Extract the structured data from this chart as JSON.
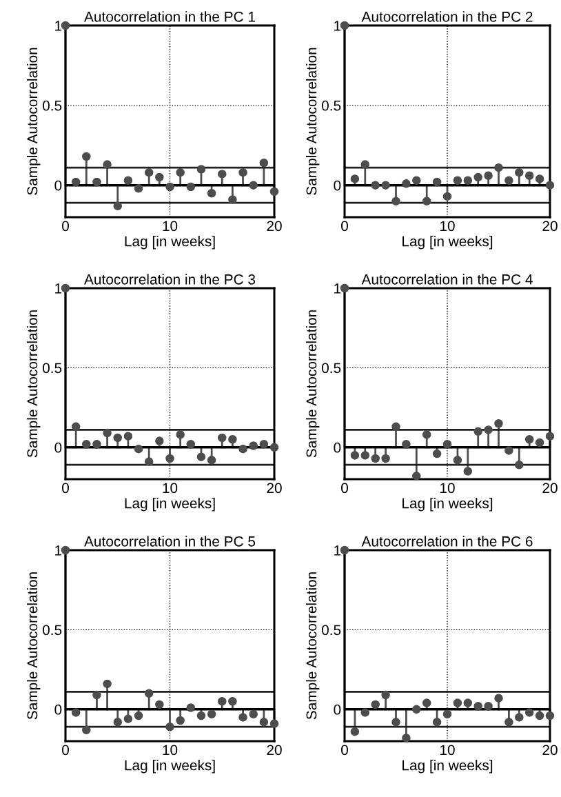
{
  "chart_data": [
    {
      "type": "lollipop",
      "title": "Autocorrelation in the PC 1",
      "xlabel": "Lag [in weeks]",
      "ylabel": "Sample Autocorrelation",
      "x": [
        0,
        1,
        2,
        3,
        4,
        5,
        6,
        7,
        8,
        9,
        10,
        11,
        12,
        13,
        14,
        15,
        16,
        17,
        18,
        19,
        20
      ],
      "series": [
        {
          "color": "#4d4d4d",
          "values": [
            1,
            0.02,
            0.18,
            0.02,
            0.13,
            -0.13,
            0.03,
            -0.02,
            0.08,
            0.05,
            -0.01,
            0.08,
            -0.01,
            0.1,
            -0.05,
            0.07,
            -0.09,
            0.08,
            0.0,
            0.14,
            -0.04
          ]
        }
      ],
      "xlim": [
        0,
        20
      ],
      "xticks": [
        0,
        10,
        20
      ],
      "ylim": [
        -0.2,
        1
      ],
      "yticks": [
        0,
        0.5,
        1
      ],
      "grid": true,
      "marker": "circle",
      "ref_lines": [
        {
          "axis": "y",
          "value": 0.11,
          "color": "#222222"
        },
        {
          "axis": "y",
          "value": -0.11,
          "color": "#222222"
        }
      ]
    },
    {
      "type": "lollipop",
      "title": "Autocorrelation in the PC 2",
      "xlabel": "Lag [in weeks]",
      "ylabel": "Sample Autocorrelation",
      "x": [
        0,
        1,
        2,
        3,
        4,
        5,
        6,
        7,
        8,
        9,
        10,
        11,
        12,
        13,
        14,
        15,
        16,
        17,
        18,
        19,
        20
      ],
      "series": [
        {
          "color": "#4d4d4d",
          "values": [
            1,
            0.04,
            0.13,
            0.0,
            0.0,
            -0.1,
            0.01,
            0.03,
            -0.1,
            0.02,
            -0.07,
            0.03,
            0.03,
            0.05,
            0.06,
            0.11,
            0.03,
            0.08,
            0.06,
            0.04,
            0.0
          ]
        }
      ],
      "xlim": [
        0,
        20
      ],
      "xticks": [
        0,
        10,
        20
      ],
      "ylim": [
        -0.2,
        1
      ],
      "yticks": [
        0,
        0.5,
        1
      ],
      "grid": true,
      "marker": "circle",
      "ref_lines": [
        {
          "axis": "y",
          "value": 0.11,
          "color": "#222222"
        },
        {
          "axis": "y",
          "value": -0.11,
          "color": "#222222"
        }
      ]
    },
    {
      "type": "lollipop",
      "title": "Autocorrelation in the PC 3",
      "xlabel": "Lag [in weeks]",
      "ylabel": "Sample Autocorrelation",
      "x": [
        0,
        1,
        2,
        3,
        4,
        5,
        6,
        7,
        8,
        9,
        10,
        11,
        12,
        13,
        14,
        15,
        16,
        17,
        18,
        19,
        20
      ],
      "series": [
        {
          "color": "#4d4d4d",
          "values": [
            1,
            0.13,
            0.02,
            0.02,
            0.09,
            0.06,
            0.07,
            -0.01,
            -0.09,
            0.04,
            -0.07,
            0.08,
            0.02,
            -0.06,
            -0.08,
            0.06,
            0.05,
            -0.01,
            0.01,
            0.02,
            0.0
          ]
        }
      ],
      "xlim": [
        0,
        20
      ],
      "xticks": [
        0,
        10,
        20
      ],
      "ylim": [
        -0.2,
        1
      ],
      "yticks": [
        0,
        0.5,
        1
      ],
      "grid": true,
      "marker": "circle",
      "ref_lines": [
        {
          "axis": "y",
          "value": 0.11,
          "color": "#222222"
        },
        {
          "axis": "y",
          "value": -0.11,
          "color": "#222222"
        }
      ]
    },
    {
      "type": "lollipop",
      "title": "Autocorrelation in the PC 4",
      "xlabel": "Lag [in weeks]",
      "ylabel": "Sample Autocorrelation",
      "x": [
        0,
        1,
        2,
        3,
        4,
        5,
        6,
        7,
        8,
        9,
        10,
        11,
        12,
        13,
        14,
        15,
        16,
        17,
        18,
        19,
        20
      ],
      "series": [
        {
          "color": "#4d4d4d",
          "values": [
            1,
            -0.05,
            -0.05,
            -0.07,
            -0.07,
            0.13,
            0.02,
            -0.18,
            0.08,
            -0.04,
            0.02,
            -0.08,
            -0.15,
            0.1,
            0.11,
            0.15,
            -0.02,
            -0.11,
            0.05,
            0.03,
            0.07
          ]
        }
      ],
      "xlim": [
        0,
        20
      ],
      "xticks": [
        0,
        10,
        20
      ],
      "ylim": [
        -0.2,
        1
      ],
      "yticks": [
        0,
        0.5,
        1
      ],
      "grid": true,
      "marker": "circle",
      "ref_lines": [
        {
          "axis": "y",
          "value": 0.11,
          "color": "#222222"
        },
        {
          "axis": "y",
          "value": -0.11,
          "color": "#222222"
        }
      ]
    },
    {
      "type": "lollipop",
      "title": "Autocorrelation in the PC 5",
      "xlabel": "Lag [in weeks]",
      "ylabel": "Sample Autocorrelation",
      "x": [
        0,
        1,
        2,
        3,
        4,
        5,
        6,
        7,
        8,
        9,
        10,
        11,
        12,
        13,
        14,
        15,
        16,
        17,
        18,
        19,
        20
      ],
      "series": [
        {
          "color": "#4d4d4d",
          "values": [
            1,
            -0.02,
            -0.13,
            0.09,
            0.16,
            -0.08,
            -0.06,
            -0.04,
            0.1,
            0.03,
            -0.11,
            -0.07,
            0.01,
            -0.04,
            -0.03,
            0.05,
            0.05,
            -0.05,
            -0.03,
            -0.08,
            -0.09
          ]
        }
      ],
      "xlim": [
        0,
        20
      ],
      "xticks": [
        0,
        10,
        20
      ],
      "ylim": [
        -0.2,
        1
      ],
      "yticks": [
        0,
        0.5,
        1
      ],
      "grid": true,
      "marker": "circle",
      "ref_lines": [
        {
          "axis": "y",
          "value": 0.11,
          "color": "#222222"
        },
        {
          "axis": "y",
          "value": -0.11,
          "color": "#222222"
        }
      ]
    },
    {
      "type": "lollipop",
      "title": "Autocorrelation in the PC 6",
      "xlabel": "Lag [in weeks]",
      "ylabel": "Sample Autocorrelation",
      "x": [
        0,
        1,
        2,
        3,
        4,
        5,
        6,
        7,
        8,
        9,
        10,
        11,
        12,
        13,
        14,
        15,
        16,
        17,
        18,
        19,
        20
      ],
      "series": [
        {
          "color": "#4d4d4d",
          "values": [
            1,
            -0.14,
            -0.02,
            0.03,
            0.09,
            -0.08,
            -0.18,
            0.0,
            0.04,
            -0.08,
            -0.03,
            0.04,
            0.04,
            0.02,
            0.02,
            0.07,
            -0.08,
            -0.05,
            -0.02,
            -0.04,
            -0.04
          ]
        }
      ],
      "xlim": [
        0,
        20
      ],
      "xticks": [
        0,
        10,
        20
      ],
      "ylim": [
        -0.2,
        1
      ],
      "yticks": [
        0,
        0.5,
        1
      ],
      "grid": true,
      "marker": "circle",
      "ref_lines": [
        {
          "axis": "y",
          "value": 0.11,
          "color": "#222222"
        },
        {
          "axis": "y",
          "value": -0.11,
          "color": "#222222"
        }
      ]
    }
  ]
}
